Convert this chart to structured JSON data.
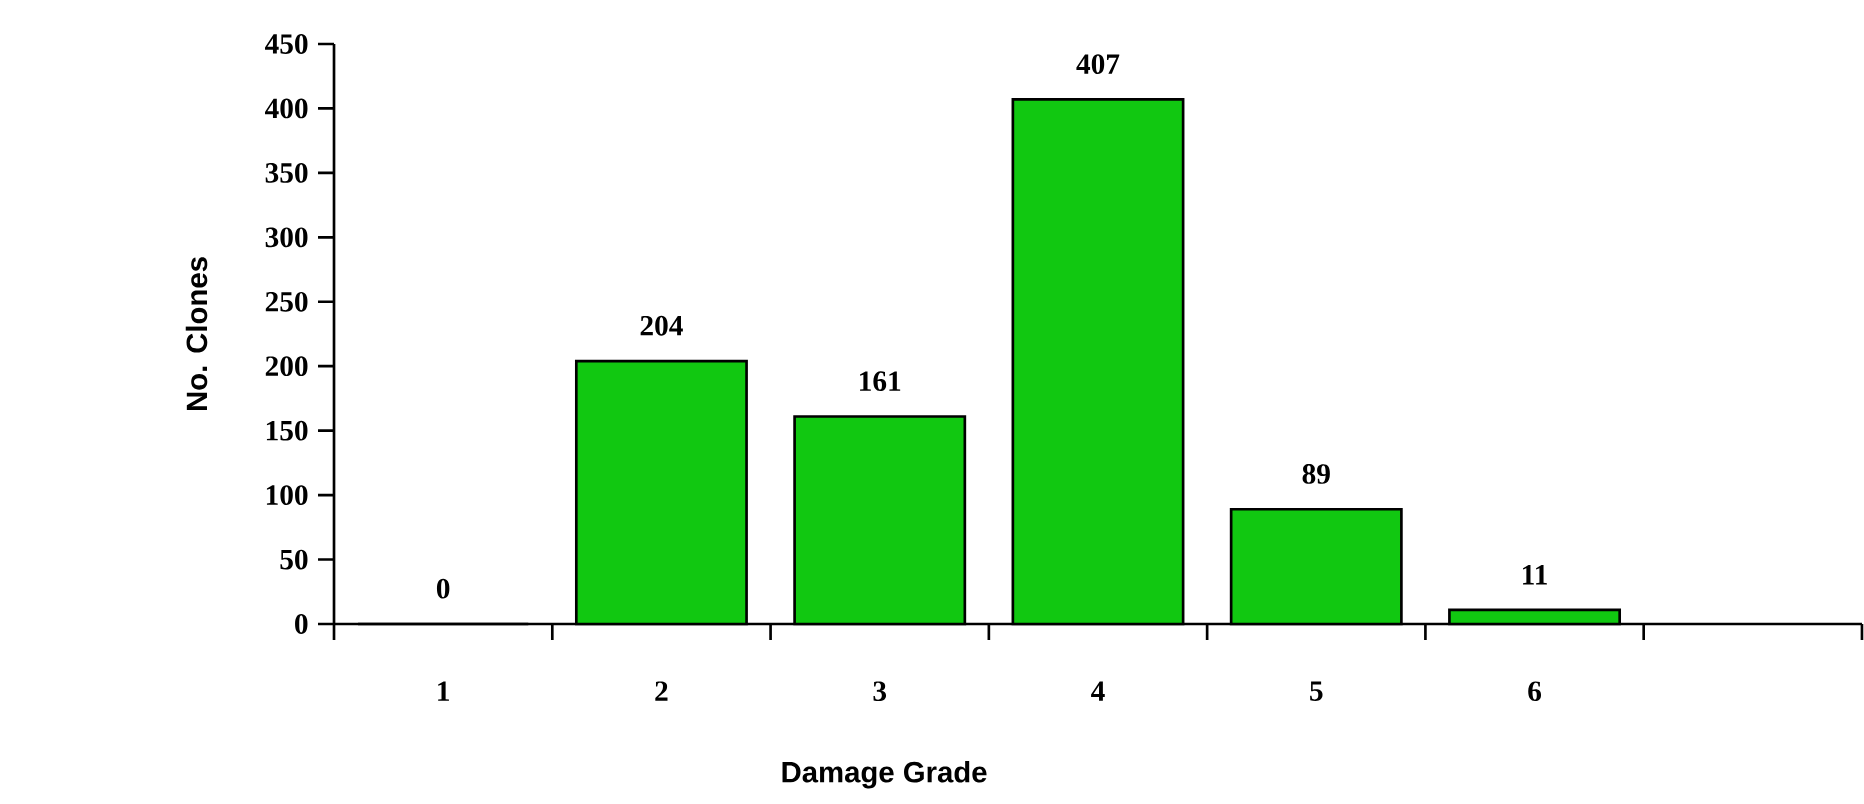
{
  "chart_data": {
    "type": "bar",
    "xlabel": "Damage Grade",
    "ylabel": "No. Clones",
    "categories": [
      "1",
      "2",
      "3",
      "4",
      "5",
      "6",
      null
    ],
    "values": [
      0,
      204,
      161,
      407,
      89,
      11,
      null
    ],
    "color": "#11c811",
    "ylim": [
      0,
      450
    ],
    "yticks": [
      0,
      50,
      100,
      150,
      200,
      250,
      300,
      350,
      400,
      450
    ],
    "data_labels": true
  }
}
